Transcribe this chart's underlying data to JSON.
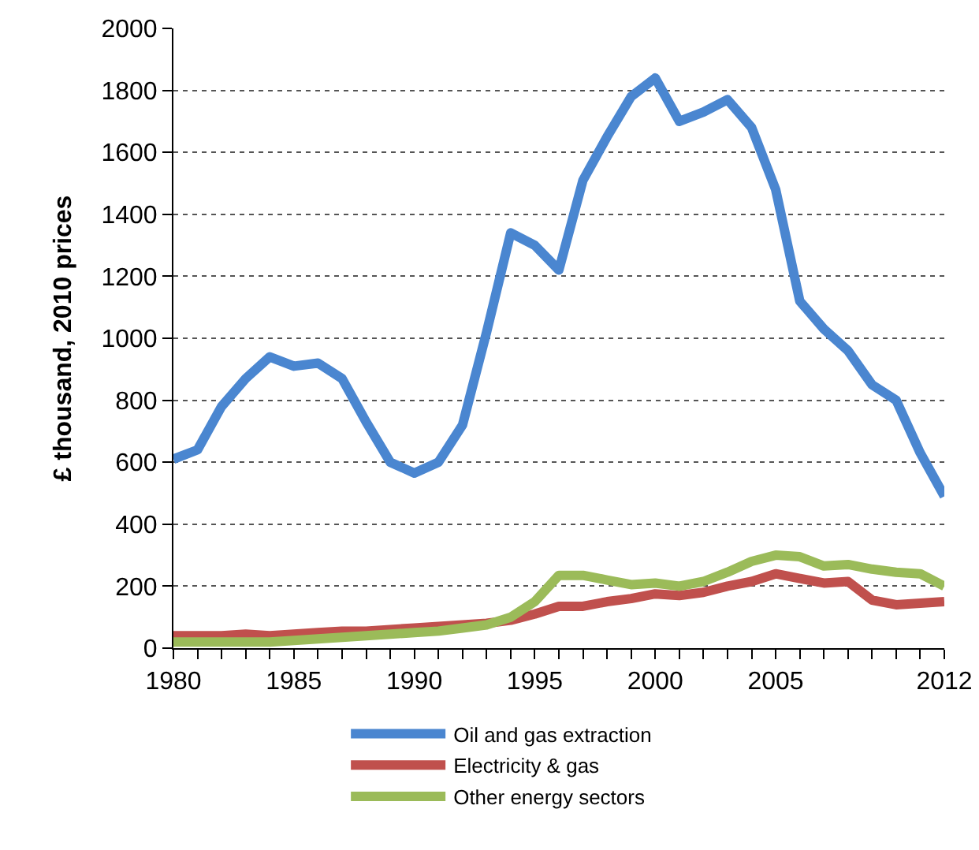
{
  "chart_data": {
    "type": "line",
    "ylabel": "£ thousand, 2010 prices",
    "x": [
      1980,
      1981,
      1982,
      1983,
      1984,
      1985,
      1986,
      1987,
      1988,
      1989,
      1990,
      1991,
      1992,
      1993,
      1994,
      1995,
      1996,
      1997,
      1998,
      1999,
      2000,
      2001,
      2002,
      2003,
      2004,
      2005,
      2006,
      2007,
      2008,
      2009,
      2010,
      2011,
      2012
    ],
    "series": [
      {
        "name": "Oil and gas extraction",
        "color": "#4a86d0",
        "values": [
          610,
          640,
          780,
          870,
          940,
          910,
          920,
          870,
          730,
          600,
          565,
          600,
          720,
          1020,
          1340,
          1300,
          1220,
          1510,
          1650,
          1780,
          1840,
          1700,
          1730,
          1770,
          1680,
          1480,
          1120,
          1030,
          960,
          850,
          800,
          630,
          490
        ]
      },
      {
        "name": "Electricity & gas",
        "color": "#c0504d",
        "values": [
          40,
          40,
          40,
          45,
          40,
          45,
          50,
          55,
          55,
          60,
          65,
          70,
          75,
          80,
          90,
          110,
          135,
          135,
          150,
          160,
          175,
          170,
          180,
          200,
          215,
          240,
          225,
          210,
          215,
          155,
          140,
          145,
          150
        ]
      },
      {
        "name": "Other energy sectors",
        "color": "#9bbb59",
        "values": [
          20,
          20,
          20,
          20,
          20,
          25,
          30,
          35,
          40,
          45,
          50,
          55,
          65,
          75,
          100,
          150,
          235,
          235,
          220,
          205,
          210,
          200,
          215,
          245,
          280,
          300,
          295,
          265,
          270,
          255,
          245,
          240,
          200
        ]
      }
    ],
    "xlim": [
      1980,
      2012
    ],
    "xticks": [
      1980,
      {
        "value": 1981,
        "label": null
      },
      {
        "value": 1982,
        "label": null
      },
      {
        "value": 1983,
        "label": null
      },
      {
        "value": 1984,
        "label": null
      },
      1985,
      {
        "value": 1986,
        "label": null
      },
      {
        "value": 1987,
        "label": null
      },
      {
        "value": 1988,
        "label": null
      },
      {
        "value": 1989,
        "label": null
      },
      1990,
      {
        "value": 1991,
        "label": null
      },
      {
        "value": 1992,
        "label": null
      },
      {
        "value": 1993,
        "label": null
      },
      {
        "value": 1994,
        "label": null
      },
      1995,
      {
        "value": 1996,
        "label": null
      },
      {
        "value": 1997,
        "label": null
      },
      {
        "value": 1998,
        "label": null
      },
      {
        "value": 1999,
        "label": null
      },
      2000,
      {
        "value": 2001,
        "label": null
      },
      {
        "value": 2002,
        "label": null
      },
      {
        "value": 2003,
        "label": null
      },
      {
        "value": 2004,
        "label": null
      },
      2005,
      {
        "value": 2006,
        "label": null
      },
      {
        "value": 2007,
        "label": null
      },
      {
        "value": 2008,
        "label": null
      },
      {
        "value": 2009,
        "label": null
      },
      {
        "value": 2010,
        "label": null
      },
      {
        "value": 2011,
        "label": null
      },
      2012
    ],
    "ylim": [
      0,
      2000
    ],
    "yticks": [
      0,
      200,
      400,
      600,
      800,
      1000,
      1200,
      1400,
      1600,
      1800,
      2000
    ],
    "grid": "y",
    "legend": "bottom",
    "marker": "none",
    "line_style": "solid"
  }
}
